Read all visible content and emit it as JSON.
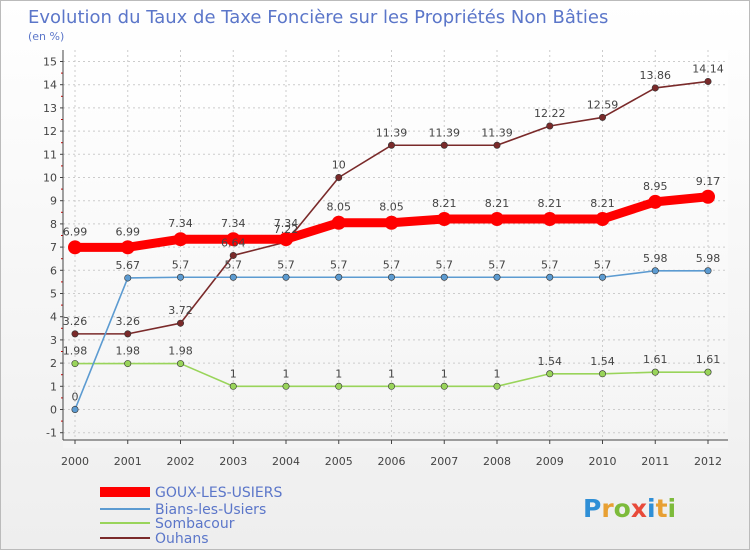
{
  "chart_data": {
    "type": "line",
    "title": "Evolution du Taux de Taxe Foncière sur les Propriétés Non Bâties",
    "ylabel": "(en %)",
    "xlabel": "",
    "categories": [
      "2000",
      "2001",
      "2002",
      "2003",
      "2004",
      "2005",
      "2006",
      "2007",
      "2008",
      "2009",
      "2010",
      "2011",
      "2012"
    ],
    "ylim": [
      -1,
      15
    ],
    "yticks": [
      "-1",
      "0",
      "1",
      "2",
      "3",
      "4",
      "5",
      "6",
      "7",
      "8",
      "9",
      "10",
      "11",
      "12",
      "13",
      "14",
      "15"
    ],
    "grid": true,
    "legend_position": "bottom-left",
    "series": [
      {
        "name": "GOUX-LES-USIERS",
        "color": "#ff0000",
        "values": [
          6.99,
          6.99,
          7.34,
          7.34,
          7.34,
          8.05,
          8.05,
          8.21,
          8.21,
          8.21,
          8.21,
          8.95,
          9.17
        ],
        "labels": [
          "6.99",
          "6.99",
          "7.34",
          "7.34",
          "7.34",
          "8.05",
          "8.05",
          "8.21",
          "8.21",
          "8.21",
          "8.21",
          "8.95",
          "9.17"
        ]
      },
      {
        "name": "Bians-les-Usiers",
        "color": "#5c9bd1",
        "values": [
          0,
          5.67,
          5.7,
          5.7,
          5.7,
          5.7,
          5.7,
          5.7,
          5.7,
          5.7,
          5.7,
          5.98,
          5.98
        ],
        "labels": [
          "0",
          "5.67",
          "5.7",
          "5.7",
          "5.7",
          "5.7",
          "5.7",
          "5.7",
          "5.7",
          "5.7",
          "5.7",
          "5.98",
          "5.98"
        ]
      },
      {
        "name": "Sombacour",
        "color": "#99d45a",
        "values": [
          1.98,
          1.98,
          1.98,
          1,
          1,
          1,
          1,
          1,
          1,
          1.54,
          1.54,
          1.61,
          1.61
        ],
        "labels": [
          "1.98",
          "1.98",
          "1.98",
          "1",
          "1",
          "1",
          "1",
          "1",
          "1",
          "1.54",
          "1.54",
          "1.61",
          "1.61"
        ]
      },
      {
        "name": "Ouhans",
        "color": "#7a2a2a",
        "values": [
          3.26,
          3.26,
          3.72,
          6.64,
          7.22,
          10,
          11.39,
          11.39,
          11.39,
          12.22,
          12.59,
          13.86,
          14.14
        ],
        "labels": [
          "3.26",
          "3.26",
          "3.72",
          "6.64",
          "7.22",
          "10",
          "11.39",
          "11.39",
          "11.39",
          "12.22",
          "12.59",
          "13.86",
          "14.14"
        ]
      }
    ]
  },
  "colors": {
    "title": "#5b76c9",
    "axis": "#444444",
    "grid": "#cccccc",
    "legend_text": "#5b76c9",
    "tick_red": "#cc0000"
  },
  "logo": {
    "text": "Proxiti"
  }
}
